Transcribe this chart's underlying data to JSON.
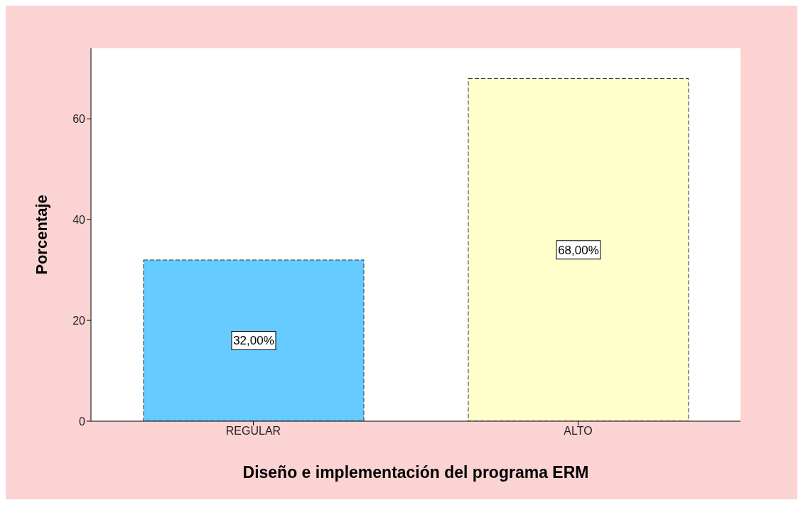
{
  "chart_data": {
    "type": "bar",
    "xlabel": "Diseño e implementación del programa ERM",
    "ylabel": "Porcentaje",
    "categories": [
      "REGULAR",
      "ALTO"
    ],
    "values": [
      32,
      68
    ],
    "colors": [
      "#66ccff",
      "#ffffcc"
    ],
    "value_labels": [
      "32,00%",
      "68,00%"
    ],
    "ylim": [
      0,
      74
    ],
    "yticks": [
      0,
      20,
      40,
      60
    ],
    "grid": false
  }
}
